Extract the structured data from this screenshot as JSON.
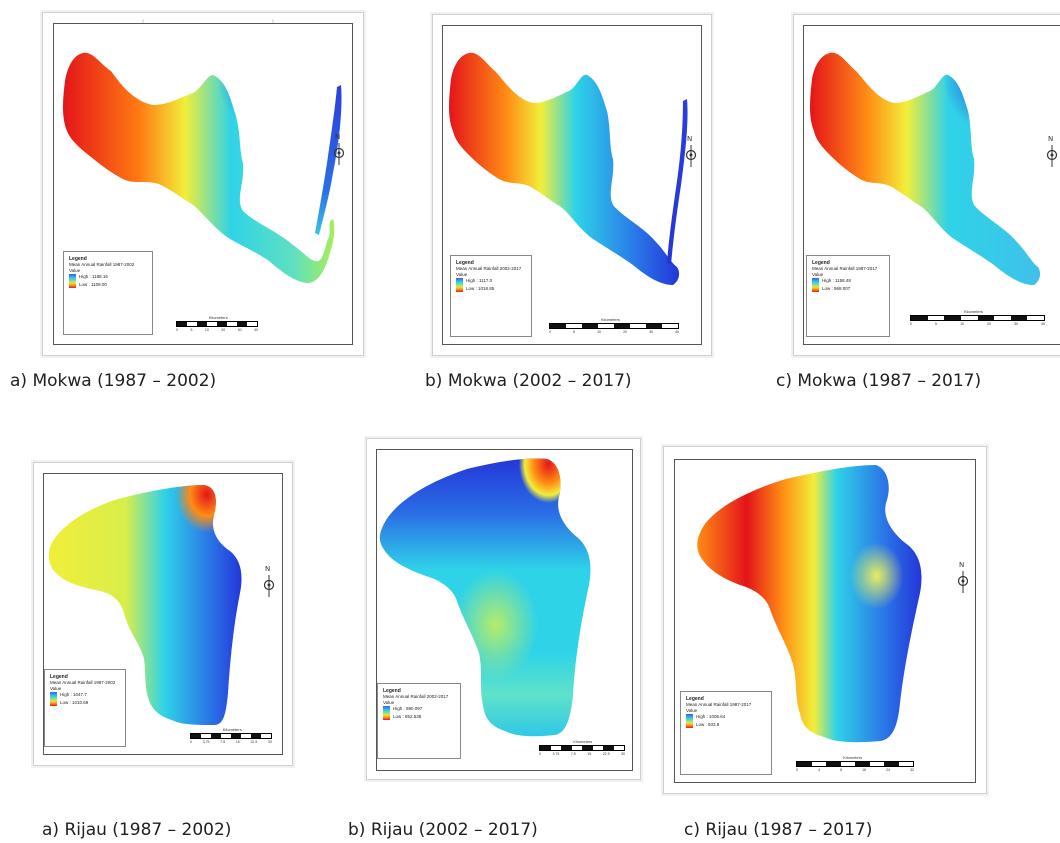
{
  "maps": [
    {
      "caption": "a) Mokwa  (1987 – 2002)",
      "legend_title": "Legend",
      "legend_subtitle": "Mean Annual Rainfall 1987-2002",
      "value_label": "Value",
      "high": "High : 1188.16",
      "low": "Low : 1108.00",
      "scale_title": "Kilometers",
      "scale_ticks": [
        "0",
        "5",
        "10",
        "20",
        "30",
        "40"
      ]
    },
    {
      "caption": "b)  Mokwa (2002 – 2017)",
      "legend_title": "Legend",
      "legend_subtitle": "Mean Annual Rainfall 2002-2017",
      "value_label": "Value",
      "high": "High : 1117.0",
      "low": "Low : 1018.85",
      "scale_title": "Kilometers",
      "scale_ticks": [
        "0",
        "5",
        "10",
        "20",
        "30",
        "40"
      ]
    },
    {
      "caption": "c)  Mokwa (1987 – 2017)",
      "legend_title": "Legend",
      "legend_subtitle": "Mean Annual Rainfall 1987-2017",
      "value_label": "Value",
      "high": "High : 1158.48",
      "low": "Low : 968.007",
      "scale_title": "Kilometers",
      "scale_ticks": [
        "0",
        "5",
        "10",
        "20",
        "30",
        "40"
      ]
    },
    {
      "caption": "a)  Rijau (1987 – 2002)",
      "legend_title": "Legend",
      "legend_subtitle": "Mean Annual Rainfall 1987-2002",
      "value_label": "Value",
      "high": "High : 1047.7",
      "low": "Low : 1010.69",
      "scale_title": "Kilometers",
      "scale_ticks": [
        "0",
        "3.75",
        "7.5",
        "15",
        "22.5",
        "30"
      ]
    },
    {
      "caption": "b)  Rijau (2002 – 2017)",
      "legend_title": "Legend",
      "legend_subtitle": "Mean Annual Rainfall 2002-2017",
      "value_label": "Value",
      "high": "High : 990.097",
      "low": "Low : 852.535",
      "scale_title": "Kilometers",
      "scale_ticks": [
        "0",
        "3.75",
        "7.5",
        "15",
        "22.5",
        "30"
      ]
    },
    {
      "caption": "c)  Rijau (1987 – 2017)",
      "legend_title": "Legend",
      "legend_subtitle": "Mean Annual Rainfall 1987-2017",
      "value_label": "Value",
      "high": "High : 1006.64",
      "low": "Low : 933.8",
      "scale_title": "Kilometers",
      "scale_ticks": [
        "0",
        "4",
        "8",
        "16",
        "24",
        "32"
      ]
    }
  ],
  "north_label": "N",
  "colors": {
    "red": "#e4141a",
    "orange": "#ff8c14",
    "yellow": "#f2ee3a",
    "cyan": "#2fd3e8",
    "blue": "#2436d8"
  }
}
